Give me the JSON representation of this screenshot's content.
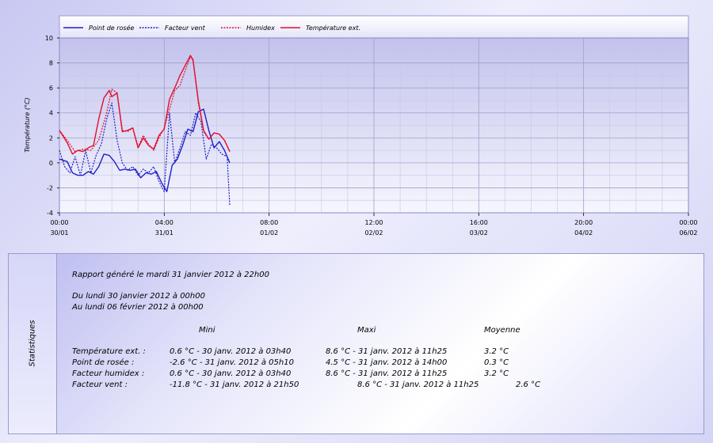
{
  "chart_data": {
    "type": "line",
    "ylabel": "Température (°C)",
    "ylim": [
      -4,
      10
    ],
    "yticks": [
      "10",
      "8",
      "6",
      "4",
      "2",
      "0",
      "-2",
      "-4"
    ],
    "xticks": [
      {
        "time": "00:00",
        "date": "30/01"
      },
      {
        "time": "04:00",
        "date": "31/01"
      },
      {
        "time": "08:00",
        "date": "01/02"
      },
      {
        "time": "12:00",
        "date": "02/02"
      },
      {
        "time": "16:00",
        "date": "03/02"
      },
      {
        "time": "20:00",
        "date": "04/02"
      },
      {
        "time": "00:00",
        "date": "06/02"
      }
    ],
    "x_unit": "hours since start",
    "grid": true,
    "legend_position": "top",
    "series": [
      {
        "name": "Point de rosée",
        "color": "#1f1fc8",
        "dash": "solid",
        "x": [
          0,
          0.3,
          0.5,
          0.7,
          0.9,
          1.1,
          1.3,
          1.5,
          1.7,
          1.9,
          2.1,
          2.3,
          2.5,
          2.7,
          2.9,
          3.1,
          3.3,
          3.5,
          3.7,
          3.9,
          4.1,
          4.3,
          4.5,
          4.7,
          4.9,
          5.1,
          5.3,
          5.5,
          5.7,
          5.9,
          6.1,
          6.3,
          6.5
        ],
        "values": [
          0.3,
          0.1,
          -0.8,
          -1.0,
          -1.0,
          -0.7,
          -0.9,
          -0.3,
          0.7,
          0.6,
          0.1,
          -0.6,
          -0.5,
          -0.6,
          -0.5,
          -1.2,
          -0.8,
          -0.9,
          -0.7,
          -1.6,
          -2.3,
          -0.2,
          0.3,
          1.4,
          2.7,
          2.5,
          4.1,
          4.3,
          2.6,
          1.2,
          1.7,
          1.0,
          0.0
        ]
      },
      {
        "name": "Facteur vent",
        "color": "#1f1fc8",
        "dash": "dotted",
        "x": [
          0,
          0.2,
          0.4,
          0.6,
          0.8,
          1.0,
          1.2,
          1.4,
          1.6,
          1.8,
          2.0,
          2.2,
          2.4,
          2.6,
          2.8,
          3.0,
          3.2,
          3.4,
          3.6,
          3.8,
          4.0,
          4.2,
          4.4,
          4.6,
          4.8,
          5.0,
          5.2,
          5.4,
          5.6,
          5.8,
          6.0,
          6.2,
          6.4,
          6.5
        ],
        "values": [
          1.0,
          -0.3,
          -0.8,
          0.5,
          -1.0,
          1.0,
          -0.8,
          0.6,
          1.5,
          3.5,
          4.8,
          1.8,
          0.0,
          -0.6,
          -0.3,
          -1.0,
          -0.5,
          -0.8,
          -0.3,
          -1.5,
          -2.3,
          4.0,
          0.0,
          1.2,
          2.5,
          2.2,
          4.0,
          3.3,
          0.3,
          1.5,
          1.2,
          0.7,
          0.5,
          -3.4
        ]
      },
      {
        "name": "Humidex",
        "color": "#e01030",
        "dash": "dotted",
        "x": [
          0,
          0.3,
          0.6,
          0.9,
          1.2,
          1.5,
          1.8,
          2.0,
          2.2,
          2.4,
          2.6,
          2.8,
          3.0,
          3.2,
          3.4,
          3.6,
          3.8,
          4.0,
          4.2,
          4.4,
          4.6,
          4.8,
          5.0,
          5.1,
          5.3,
          5.5,
          5.7,
          5.9,
          6.1,
          6.3,
          6.5
        ],
        "values": [
          2.6,
          1.8,
          0.9,
          1.1,
          1.0,
          1.8,
          4.0,
          5.9,
          5.6,
          2.6,
          2.5,
          2.8,
          1.3,
          2.2,
          1.5,
          1.0,
          2.0,
          2.8,
          4.3,
          5.8,
          6.2,
          7.4,
          8.5,
          8.3,
          4.8,
          2.5,
          1.9,
          2.4,
          2.3,
          1.8,
          0.9
        ]
      },
      {
        "name": "Température ext.",
        "color": "#e01030",
        "dash": "solid",
        "x": [
          0,
          0.3,
          0.5,
          0.7,
          0.9,
          1.1,
          1.3,
          1.5,
          1.7,
          1.9,
          2.0,
          2.2,
          2.4,
          2.6,
          2.8,
          3.0,
          3.2,
          3.4,
          3.6,
          3.8,
          4.0,
          4.2,
          4.4,
          4.6,
          4.8,
          5.0,
          5.1,
          5.3,
          5.5,
          5.7,
          5.9,
          6.1,
          6.3,
          6.5
        ],
        "values": [
          2.6,
          1.6,
          0.7,
          1.0,
          0.9,
          1.2,
          1.4,
          3.5,
          5.2,
          5.8,
          5.3,
          5.6,
          2.5,
          2.6,
          2.8,
          1.2,
          2.0,
          1.4,
          1.1,
          2.2,
          2.7,
          5.1,
          6.0,
          7.0,
          7.8,
          8.6,
          8.2,
          5.0,
          2.6,
          1.9,
          2.4,
          2.3,
          1.8,
          0.9
        ]
      }
    ]
  },
  "stats": {
    "side_label": "Statistiques",
    "report_line": "Rapport généré le mardi 31 janvier 2012 à 22h00",
    "period_from": "Du lundi 30 janvier 2012 à 00h00",
    "period_to": "Au lundi 06 février 2012 à 00h00",
    "col_headers": {
      "mini": "Mini",
      "maxi": "Maxi",
      "moyenne": "Moyenne"
    },
    "rows": [
      {
        "label": "Température ext. :",
        "mini": "0.6 °C - 30 janv. 2012 à 03h40",
        "maxi": "8.6 °C - 31 janv. 2012 à 11h25",
        "moyenne": "3.2 °C"
      },
      {
        "label": "Point de rosée :",
        "mini": "-2.6 °C - 31 janv. 2012 à 05h10",
        "maxi": "4.5 °C - 31 janv. 2012 à 14h00",
        "moyenne": "0.3 °C"
      },
      {
        "label": "Facteur humidex :",
        "mini": "0.6 °C - 30 janv. 2012 à 03h40",
        "maxi": "8.6 °C - 31 janv. 2012 à 11h25",
        "moyenne": "3.2 °C"
      },
      {
        "label": "Facteur vent :",
        "mini": "-11.8 °C - 31 janv. 2012 à 21h50",
        "maxi": "8.6 °C - 31 janv. 2012 à 11h25",
        "moyenne": "2.6 °C"
      }
    ]
  }
}
